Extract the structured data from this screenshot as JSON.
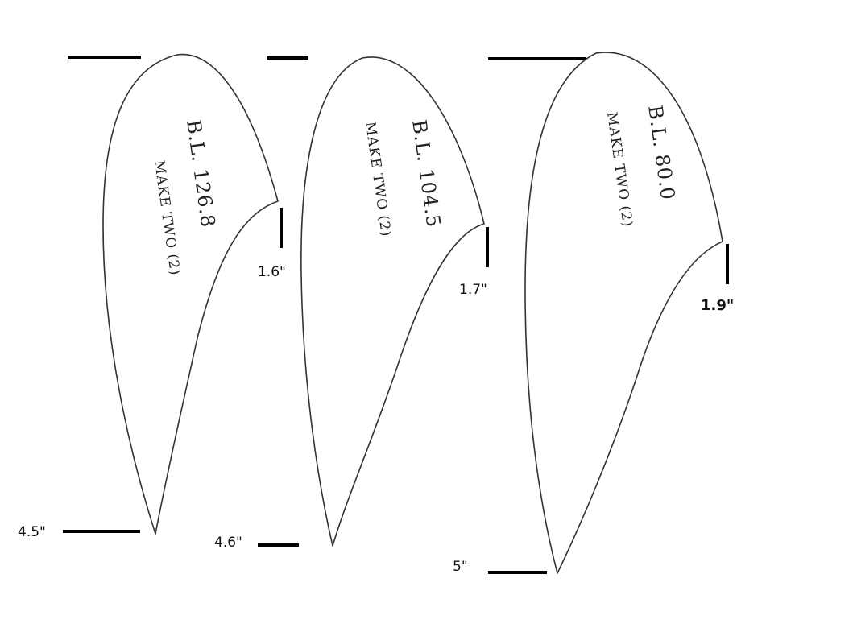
{
  "pieces": [
    {
      "station_label": "B.L. 126.8",
      "quantity_label": "MAKE TWO (2)",
      "chord_label": "4.5\"",
      "depth_label": "1.6\""
    },
    {
      "station_label": "B.L. 104.5",
      "quantity_label": "MAKE TWO (2)",
      "chord_label": "4.6\"",
      "depth_label": "1.7\""
    },
    {
      "station_label": "B.L. 80.0",
      "quantity_label": "MAKE TWO (2)",
      "chord_label": "5\"",
      "depth_label": "1.9\""
    }
  ]
}
